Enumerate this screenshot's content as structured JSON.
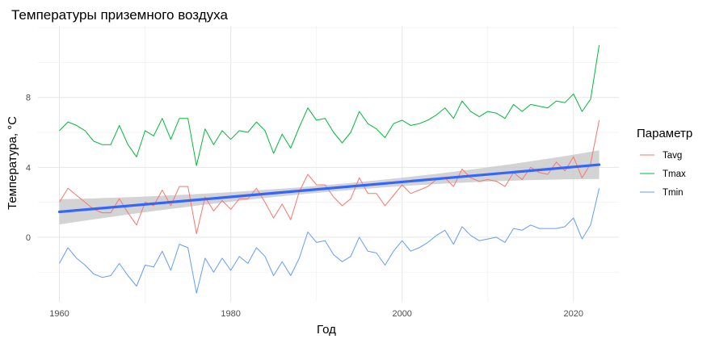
{
  "chart_data": {
    "type": "line",
    "title": "Температуры приземного воздуха",
    "xlabel": "Год",
    "ylabel": "Температура, °C",
    "xlim": [
      1957.5,
      2025.3
    ],
    "ylim": [
      -3.7,
      12.1
    ],
    "x_ticks": [
      1960,
      1980,
      2000,
      2020
    ],
    "y_ticks": [
      0,
      4,
      8
    ],
    "grid": true,
    "legend": {
      "title": "Параметр",
      "position": "right"
    },
    "x": [
      1960,
      1961,
      1962,
      1963,
      1964,
      1965,
      1966,
      1967,
      1968,
      1969,
      1970,
      1971,
      1972,
      1973,
      1974,
      1975,
      1976,
      1977,
      1978,
      1979,
      1980,
      1981,
      1982,
      1983,
      1984,
      1985,
      1986,
      1987,
      1988,
      1989,
      1990,
      1991,
      1992,
      1993,
      1994,
      1995,
      1996,
      1997,
      1998,
      1999,
      2000,
      2001,
      2002,
      2003,
      2004,
      2005,
      2006,
      2007,
      2008,
      2009,
      2010,
      2011,
      2012,
      2013,
      2014,
      2015,
      2016,
      2017,
      2018,
      2019,
      2020,
      2021,
      2022,
      2023
    ],
    "series": [
      {
        "name": "Tavg",
        "color": "#F8766D",
        "values": [
          2.0,
          2.8,
          2.4,
          2.0,
          1.6,
          1.4,
          1.4,
          2.2,
          1.4,
          0.7,
          2.0,
          1.8,
          2.7,
          1.8,
          2.9,
          2.9,
          0.2,
          2.3,
          1.5,
          2.1,
          1.6,
          2.2,
          2.2,
          2.8,
          2.0,
          1.1,
          1.9,
          1.0,
          2.6,
          3.6,
          3.0,
          3.0,
          2.3,
          1.8,
          2.2,
          3.4,
          2.5,
          2.5,
          1.8,
          2.4,
          3.0,
          2.5,
          2.7,
          2.9,
          3.3,
          3.4,
          2.9,
          3.9,
          3.4,
          3.2,
          3.3,
          3.2,
          2.9,
          3.7,
          3.3,
          4.0,
          3.7,
          3.6,
          4.3,
          3.8,
          4.6,
          3.4,
          4.2,
          6.7
        ]
      },
      {
        "name": "Tmax",
        "color": "#00BA38",
        "values": [
          6.1,
          6.6,
          6.4,
          6.1,
          5.5,
          5.3,
          5.3,
          6.4,
          5.3,
          4.6,
          6.1,
          5.8,
          6.8,
          5.6,
          6.8,
          6.8,
          4.1,
          6.2,
          5.3,
          6.1,
          5.6,
          6.1,
          6.0,
          6.6,
          6.1,
          4.8,
          5.9,
          5.1,
          6.3,
          7.4,
          6.7,
          6.8,
          6.0,
          5.4,
          6.0,
          7.2,
          6.5,
          6.2,
          5.7,
          6.5,
          6.7,
          6.4,
          6.5,
          6.7,
          7.0,
          7.4,
          6.8,
          7.8,
          7.2,
          6.9,
          7.2,
          7.1,
          6.8,
          7.6,
          7.2,
          7.6,
          7.5,
          7.4,
          7.8,
          7.7,
          8.2,
          7.2,
          7.9,
          11.0
        ]
      },
      {
        "name": "Tmin",
        "color": "#619CFF",
        "values": [
          -1.5,
          -0.6,
          -1.2,
          -1.6,
          -2.1,
          -2.3,
          -2.2,
          -1.5,
          -2.2,
          -2.8,
          -1.6,
          -1.7,
          -0.8,
          -1.9,
          -0.4,
          -0.6,
          -3.2,
          -1.2,
          -2.0,
          -1.2,
          -1.9,
          -1.1,
          -1.5,
          -0.6,
          -1.1,
          -2.2,
          -1.4,
          -2.2,
          -1.2,
          0.3,
          -0.3,
          -0.2,
          -1.0,
          -1.4,
          -1.1,
          0.0,
          -0.8,
          -0.9,
          -1.6,
          -0.8,
          -0.2,
          -0.8,
          -0.6,
          -0.3,
          0.1,
          0.4,
          -0.4,
          0.6,
          0.1,
          -0.2,
          -0.1,
          0.0,
          -0.3,
          0.5,
          0.4,
          0.7,
          0.5,
          0.5,
          0.5,
          0.6,
          1.1,
          -0.1,
          0.7,
          2.8
        ]
      }
    ],
    "trend": {
      "color": "#3366FF",
      "band_color": "#C8C8C8",
      "x": [
        1960,
        2023
      ],
      "values": [
        1.45,
        4.15
      ],
      "ci_halfwidth": [
        0.72,
        0.82
      ],
      "ci_mid_halfwidth": 0.2
    }
  }
}
